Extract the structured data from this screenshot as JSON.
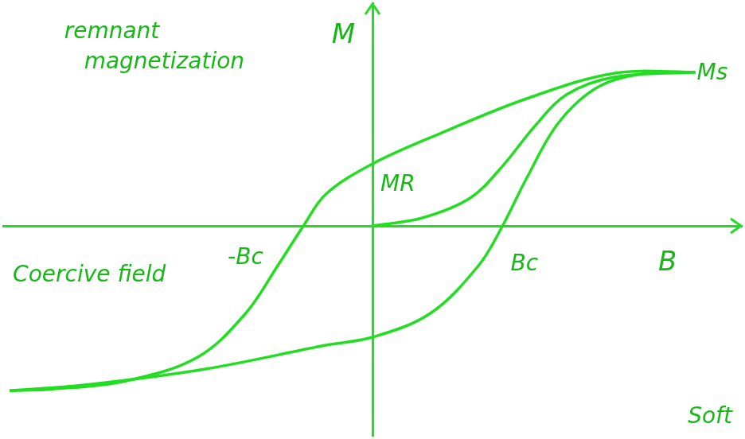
{
  "chart_data": {
    "type": "line",
    "x_label": "B",
    "y_label": "M",
    "xlim": [
      -11.5,
      11.5
    ],
    "ylim": [
      -6.6,
      7
    ],
    "tick_labels": false,
    "grid": false,
    "color": "#22dd22",
    "series": [
      {
        "x": [
          0,
          1.55,
          3.05,
          4.05,
          5.05,
          6.05,
          7.55,
          10.05
        ],
        "values": [
          0,
          0.25,
          0.88,
          1.88,
          3.13,
          4.13,
          4.68,
          4.83
        ]
      },
      {
        "x": [
          10.05,
          7.55,
          4.8,
          2.05,
          0,
          -1.45,
          -2.15,
          -2.95,
          -3.95,
          -5.45,
          -7.7,
          -9.95,
          -11.3
        ],
        "values": [
          4.83,
          4.8,
          4.0,
          2.88,
          1.95,
          1.0,
          0,
          -1.25,
          -2.75,
          -4.13,
          -4.88,
          -5.13,
          -5.18
        ]
      },
      {
        "x": [
          -11.3,
          -8.95,
          -5.2,
          -1.45,
          0,
          1.8,
          3.3,
          4.05,
          4.8,
          5.8,
          7.05,
          8.55,
          10.05
        ],
        "values": [
          -5.18,
          -5.0,
          -4.5,
          -3.75,
          -3.5,
          -2.75,
          -1.25,
          0,
          1.5,
          3.25,
          4.38,
          4.8,
          4.83
        ]
      }
    ],
    "annotations": [
      "remnant magnetization",
      "Coercive field",
      "-Bc",
      "MR",
      "Bc",
      "Ms",
      "Soft"
    ]
  }
}
